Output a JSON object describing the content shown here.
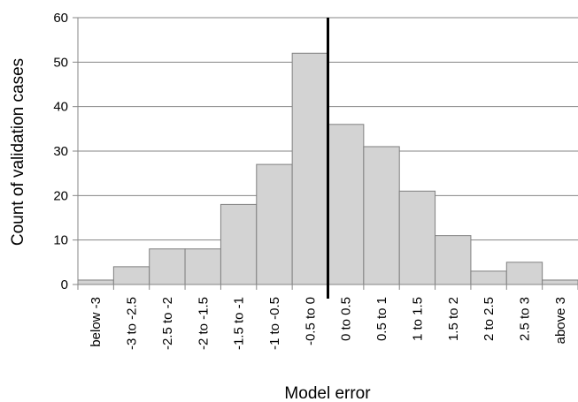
{
  "chart_data": {
    "type": "bar",
    "xlabel": "Model error",
    "ylabel": "Count of validation cases",
    "categories": [
      "below -3",
      "-3 to -2.5",
      "-2.5 to -2",
      "-2 to -1.5",
      "-1.5 to -1",
      "-1 to -0.5",
      "-0.5 to 0",
      "0 to 0.5",
      "0.5 to 1",
      "1 to 1.5",
      "1.5 to 2",
      "2 to 2.5",
      "2.5 to 3",
      "above 3"
    ],
    "values": [
      1,
      4,
      8,
      8,
      18,
      27,
      52,
      36,
      31,
      21,
      11,
      3,
      5,
      1
    ],
    "ylim": [
      0,
      60
    ],
    "yticks": [
      0,
      10,
      20,
      30,
      40,
      50,
      60
    ],
    "grid": true,
    "reference_line_x": 0,
    "bar_color": "#d3d3d3",
    "bar_edge_color": "#808080",
    "grid_color": "#868686",
    "reference_line_color": "#000000"
  }
}
